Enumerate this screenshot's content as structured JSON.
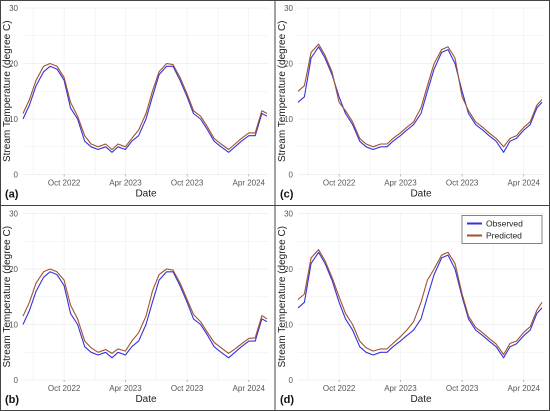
{
  "colors": {
    "observed": "#3333dd",
    "predicted": "#a0522d",
    "grid": "#ececec",
    "frame": "#444444"
  },
  "chart_data": [
    {
      "type": "line",
      "panel_label": "(a)",
      "xlabel": "Date",
      "ylabel": "Stream Temperature (degree C)",
      "ylim": [
        0,
        30
      ],
      "yticks": [
        "0",
        "10",
        "20",
        "30"
      ],
      "xticks": [
        "Oct 2022",
        "Apr 2023",
        "Oct 2023",
        "Apr 2024"
      ],
      "legend": false,
      "grid": true,
      "series": [
        {
          "name": "Observed",
          "x": [
            "2022-06-01",
            "2022-06-20",
            "2022-07-10",
            "2022-08-01",
            "2022-08-20",
            "2022-09-10",
            "2022-10-01",
            "2022-10-20",
            "2022-11-10",
            "2022-12-01",
            "2022-12-20",
            "2023-01-10",
            "2023-02-01",
            "2023-02-20",
            "2023-03-10",
            "2023-04-01",
            "2023-04-20",
            "2023-05-10",
            "2023-06-01",
            "2023-06-20",
            "2023-07-10",
            "2023-08-01",
            "2023-08-20",
            "2023-09-10",
            "2023-10-01",
            "2023-10-20",
            "2023-11-10",
            "2023-12-01",
            "2023-12-20",
            "2024-01-10",
            "2024-02-01",
            "2024-02-20",
            "2024-03-10",
            "2024-04-01",
            "2024-04-20",
            "2024-05-10",
            "2024-05-25"
          ],
          "values": [
            10,
            12.5,
            16,
            18.5,
            19.5,
            19,
            17,
            12,
            10,
            6,
            5,
            4.5,
            5,
            4,
            5,
            4.5,
            6,
            7,
            10,
            14,
            18,
            19.5,
            19.5,
            17,
            14,
            11,
            10,
            8,
            6,
            5,
            4,
            5,
            6,
            7,
            7,
            11,
            10.5
          ]
        },
        {
          "name": "Predicted",
          "x": [
            "2022-06-01",
            "2022-06-20",
            "2022-07-10",
            "2022-08-01",
            "2022-08-20",
            "2022-09-10",
            "2022-10-01",
            "2022-10-20",
            "2022-11-10",
            "2022-12-01",
            "2022-12-20",
            "2023-01-10",
            "2023-02-01",
            "2023-02-20",
            "2023-03-10",
            "2023-04-01",
            "2023-04-20",
            "2023-05-10",
            "2023-06-01",
            "2023-06-20",
            "2023-07-10",
            "2023-08-01",
            "2023-08-20",
            "2023-09-10",
            "2023-10-01",
            "2023-10-20",
            "2023-11-10",
            "2023-12-01",
            "2023-12-20",
            "2024-01-10",
            "2024-02-01",
            "2024-02-20",
            "2024-03-10",
            "2024-04-01",
            "2024-04-20",
            "2024-05-10",
            "2024-05-25"
          ],
          "values": [
            11,
            13.5,
            17,
            19.5,
            20,
            19.5,
            17.5,
            13,
            10.5,
            7,
            5.5,
            5,
            5.5,
            4.5,
            5.5,
            5,
            6.5,
            8,
            11,
            15,
            18.5,
            20,
            19.8,
            17.5,
            14.5,
            11.5,
            10.5,
            8.5,
            6.5,
            5.5,
            4.5,
            5.5,
            6.5,
            7.5,
            7.5,
            11.5,
            11
          ]
        }
      ]
    },
    {
      "type": "line",
      "panel_label": "(c)",
      "xlabel": "Date",
      "ylabel": "Stream Temperature (degree C)",
      "ylim": [
        0,
        30
      ],
      "yticks": [
        "0",
        "10",
        "20",
        "30"
      ],
      "xticks": [
        "Oct 2022",
        "Apr 2023",
        "Oct 2023",
        "Apr 2024"
      ],
      "legend": false,
      "grid": true,
      "series": [
        {
          "name": "Observed",
          "x": [
            "2022-06-01",
            "2022-06-20",
            "2022-07-10",
            "2022-08-01",
            "2022-08-20",
            "2022-09-10",
            "2022-10-01",
            "2022-10-20",
            "2022-11-10",
            "2022-12-01",
            "2022-12-20",
            "2023-01-10",
            "2023-02-01",
            "2023-02-20",
            "2023-03-10",
            "2023-04-01",
            "2023-04-20",
            "2023-05-10",
            "2023-06-01",
            "2023-06-20",
            "2023-07-10",
            "2023-08-01",
            "2023-08-20",
            "2023-09-10",
            "2023-10-01",
            "2023-10-20",
            "2023-11-10",
            "2023-12-01",
            "2023-12-20",
            "2024-01-10",
            "2024-02-01",
            "2024-02-20",
            "2024-03-10",
            "2024-04-01",
            "2024-04-20",
            "2024-05-10",
            "2024-05-25"
          ],
          "values": [
            13,
            14,
            21,
            23,
            21,
            18,
            14,
            11,
            9,
            6,
            5,
            4.5,
            5,
            5,
            6,
            7,
            8,
            9,
            11,
            15,
            19,
            22,
            22.5,
            20,
            15,
            11,
            9,
            8,
            7,
            6,
            4,
            6,
            6.5,
            8,
            9,
            12,
            13
          ]
        },
        {
          "name": "Predicted",
          "x": [
            "2022-06-01",
            "2022-06-20",
            "2022-07-10",
            "2022-08-01",
            "2022-08-20",
            "2022-09-10",
            "2022-10-01",
            "2022-10-20",
            "2022-11-10",
            "2022-12-01",
            "2022-12-20",
            "2023-01-10",
            "2023-02-01",
            "2023-02-20",
            "2023-03-10",
            "2023-04-01",
            "2023-04-20",
            "2023-05-10",
            "2023-06-01",
            "2023-06-20",
            "2023-07-10",
            "2023-08-01",
            "2023-08-20",
            "2023-09-10",
            "2023-10-01",
            "2023-10-20",
            "2023-11-10",
            "2023-12-01",
            "2023-12-20",
            "2024-01-10",
            "2024-02-01",
            "2024-02-20",
            "2024-03-10",
            "2024-04-01",
            "2024-04-20",
            "2024-05-10",
            "2024-05-25"
          ],
          "values": [
            15,
            16,
            22,
            23.5,
            21.5,
            18.5,
            13,
            11.5,
            9.5,
            6.5,
            5.5,
            5,
            5.5,
            5.5,
            6.5,
            7.5,
            8.5,
            9.5,
            12,
            16,
            20,
            22.5,
            23,
            21,
            14,
            11.5,
            9.5,
            8.5,
            7.5,
            6.5,
            5,
            6.5,
            7,
            8.5,
            9.5,
            12.5,
            13.5
          ]
        }
      ]
    },
    {
      "type": "line",
      "panel_label": "(b)",
      "xlabel": "Date",
      "ylabel": "Stream Temperature (degree C)",
      "ylim": [
        0,
        30
      ],
      "yticks": [
        "0",
        "10",
        "20",
        "30"
      ],
      "xticks": [
        "Oct 2022",
        "Apr 2023",
        "Oct 2023",
        "Apr 2024"
      ],
      "legend": false,
      "grid": true,
      "series": [
        {
          "name": "Observed",
          "x": [
            "2022-06-01",
            "2022-06-20",
            "2022-07-10",
            "2022-08-01",
            "2022-08-20",
            "2022-09-10",
            "2022-10-01",
            "2022-10-20",
            "2022-11-10",
            "2022-12-01",
            "2022-12-20",
            "2023-01-10",
            "2023-02-01",
            "2023-02-20",
            "2023-03-10",
            "2023-04-01",
            "2023-04-20",
            "2023-05-10",
            "2023-06-01",
            "2023-06-20",
            "2023-07-10",
            "2023-08-01",
            "2023-08-20",
            "2023-09-10",
            "2023-10-01",
            "2023-10-20",
            "2023-11-10",
            "2023-12-01",
            "2023-12-20",
            "2024-01-10",
            "2024-02-01",
            "2024-02-20",
            "2024-03-10",
            "2024-04-01",
            "2024-04-20",
            "2024-05-10",
            "2024-05-25"
          ],
          "values": [
            10,
            12.5,
            16,
            18.5,
            19.5,
            19,
            17,
            12,
            10,
            6,
            5,
            4.5,
            5,
            4,
            5,
            4.5,
            6,
            7,
            10,
            14,
            18,
            19.5,
            19.5,
            17,
            14,
            11,
            10,
            8,
            6,
            5,
            4,
            5,
            6,
            7,
            7,
            11,
            10.5
          ]
        },
        {
          "name": "Predicted",
          "x": [
            "2022-06-01",
            "2022-06-20",
            "2022-07-10",
            "2022-08-01",
            "2022-08-20",
            "2022-09-10",
            "2022-10-01",
            "2022-10-20",
            "2022-11-10",
            "2022-12-01",
            "2022-12-20",
            "2023-01-10",
            "2023-02-01",
            "2023-02-20",
            "2023-03-10",
            "2023-04-01",
            "2023-04-20",
            "2023-05-10",
            "2023-06-01",
            "2023-06-20",
            "2023-07-10",
            "2023-08-01",
            "2023-08-20",
            "2023-09-10",
            "2023-10-01",
            "2023-10-20",
            "2023-11-10",
            "2023-12-01",
            "2023-12-20",
            "2024-01-10",
            "2024-02-01",
            "2024-02-20",
            "2024-03-10",
            "2024-04-01",
            "2024-04-20",
            "2024-05-10",
            "2024-05-25"
          ],
          "values": [
            11.5,
            14,
            17.5,
            19.5,
            20,
            19.5,
            18,
            13.5,
            11,
            7,
            5.8,
            5,
            5.5,
            4.8,
            5.6,
            5.2,
            7,
            8.5,
            11.5,
            16,
            19,
            20,
            19.8,
            17.5,
            14.5,
            11.8,
            10.5,
            8.5,
            6.8,
            5.8,
            4.8,
            5.6,
            6.5,
            7.5,
            7.6,
            11.6,
            11
          ]
        }
      ]
    },
    {
      "type": "line",
      "panel_label": "(d)",
      "xlabel": "Date",
      "ylabel": "Stream Temperature (degree C)",
      "ylim": [
        0,
        30
      ],
      "yticks": [
        "0",
        "10",
        "20",
        "30"
      ],
      "xticks": [
        "Oct 2022",
        "Apr 2023",
        "Oct 2023",
        "Apr 2024"
      ],
      "legend": true,
      "legend_position": "top-right",
      "grid": true,
      "series": [
        {
          "name": "Observed",
          "x": [
            "2022-06-01",
            "2022-06-20",
            "2022-07-10",
            "2022-08-01",
            "2022-08-20",
            "2022-09-10",
            "2022-10-01",
            "2022-10-20",
            "2022-11-10",
            "2022-12-01",
            "2022-12-20",
            "2023-01-10",
            "2023-02-01",
            "2023-02-20",
            "2023-03-10",
            "2023-04-01",
            "2023-04-20",
            "2023-05-10",
            "2023-06-01",
            "2023-06-20",
            "2023-07-10",
            "2023-08-01",
            "2023-08-20",
            "2023-09-10",
            "2023-10-01",
            "2023-10-20",
            "2023-11-10",
            "2023-12-01",
            "2023-12-20",
            "2024-01-10",
            "2024-02-01",
            "2024-02-20",
            "2024-03-10",
            "2024-04-01",
            "2024-04-20",
            "2024-05-10",
            "2024-05-25"
          ],
          "values": [
            13,
            14,
            21,
            23,
            21,
            18,
            14,
            11,
            9,
            6,
            5,
            4.5,
            5,
            5,
            6,
            7,
            8,
            9,
            11,
            15,
            19,
            22,
            22.5,
            20,
            15,
            11,
            9,
            8,
            7,
            6,
            4,
            6,
            6.5,
            8,
            9,
            12,
            13
          ]
        },
        {
          "name": "Predicted",
          "x": [
            "2022-06-01",
            "2022-06-20",
            "2022-07-10",
            "2022-08-01",
            "2022-08-20",
            "2022-09-10",
            "2022-10-01",
            "2022-10-20",
            "2022-11-10",
            "2022-12-01",
            "2022-12-20",
            "2023-01-10",
            "2023-02-01",
            "2023-02-20",
            "2023-03-10",
            "2023-04-01",
            "2023-04-20",
            "2023-05-10",
            "2023-06-01",
            "2023-06-20",
            "2023-07-10",
            "2023-08-01",
            "2023-08-20",
            "2023-09-10",
            "2023-10-01",
            "2023-10-20",
            "2023-11-10",
            "2023-12-01",
            "2023-12-20",
            "2024-01-10",
            "2024-02-01",
            "2024-02-20",
            "2024-03-10",
            "2024-04-01",
            "2024-04-20",
            "2024-05-10",
            "2024-05-25"
          ],
          "values": [
            14.5,
            15.5,
            22,
            23.5,
            21.5,
            18.5,
            15,
            12,
            10,
            7,
            5.8,
            5.2,
            5.6,
            5.6,
            6.6,
            7.8,
            9,
            10.5,
            14,
            18,
            20,
            22.5,
            23,
            21,
            15.5,
            11.5,
            9.5,
            8.5,
            7.5,
            6.5,
            4.6,
            6.6,
            7,
            8.6,
            9.6,
            12.6,
            14
          ]
        }
      ]
    }
  ]
}
